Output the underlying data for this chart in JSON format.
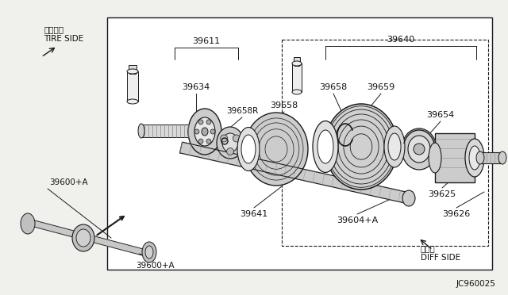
{
  "bg_color": "#f0f0ec",
  "line_color": "#1a1a1a",
  "text_color": "#111111",
  "title_ref": "JC960025",
  "tire_side_jp": "タイヤ側",
  "tire_side_en": "TIRE SIDE",
  "diff_side_jp": "デフ側",
  "diff_side_en": "DIFF SIDE",
  "fig_width": 6.4,
  "fig_height": 3.72,
  "dpi": 100
}
